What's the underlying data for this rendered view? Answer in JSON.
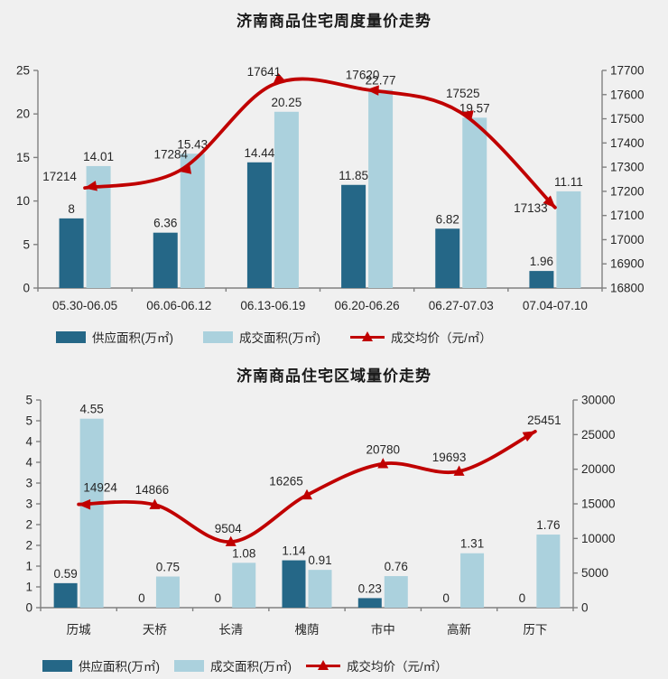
{
  "page_background": "#f0f0f0",
  "colors": {
    "supply_bar": "#256787",
    "transaction_bar": "#abd1dd",
    "price_line": "#c00000",
    "text": "#262626",
    "axis": "#808080"
  },
  "chart_data": [
    {
      "type": "bar",
      "subtype": "grouped-bars-with-line",
      "title": "济南商品住宅周度量价走势",
      "categories": [
        "05.30-06.05",
        "06.06-06.12",
        "06.13-06.19",
        "06.20-06.26",
        "06.27-07.03",
        "07.04-07.10"
      ],
      "series": [
        {
          "name": "供应面积(万㎡)",
          "type": "bar",
          "axis": "left",
          "values": [
            8,
            6.36,
            14.44,
            11.85,
            6.82,
            1.96
          ]
        },
        {
          "name": "成交面积(万㎡)",
          "type": "bar",
          "axis": "left",
          "values": [
            14.01,
            15.43,
            20.25,
            22.77,
            19.57,
            11.11
          ]
        },
        {
          "name": "成交均价（元/㎡）",
          "type": "line",
          "axis": "right",
          "values": [
            17214,
            17284,
            17641,
            17620,
            17525,
            17133
          ]
        }
      ],
      "left_axis": {
        "min": 0,
        "max": 25,
        "step": 5,
        "tick_labels": [
          "0",
          "5",
          "10",
          "15",
          "20",
          "25"
        ]
      },
      "right_axis": {
        "min": 16800,
        "max": 17700,
        "step": 100,
        "tick_labels": [
          "16800",
          "16900",
          "17000",
          "17100",
          "17200",
          "17300",
          "17400",
          "17500",
          "17600",
          "17700"
        ]
      },
      "grid": false,
      "legend_position": "bottom"
    },
    {
      "type": "bar",
      "subtype": "grouped-bars-with-line",
      "title": "济南商品住宅区域量价走势",
      "categories": [
        "历城",
        "天桥",
        "长清",
        "槐荫",
        "市中",
        "高新",
        "历下"
      ],
      "series": [
        {
          "name": "供应面积(万㎡)",
          "type": "bar",
          "axis": "left",
          "values": [
            0.59,
            0,
            0,
            1.14,
            0.23,
            0,
            0
          ]
        },
        {
          "name": "成交面积(万㎡)",
          "type": "bar",
          "axis": "left",
          "values": [
            4.55,
            0.75,
            1.08,
            0.91,
            0.76,
            1.31,
            1.76
          ]
        },
        {
          "name": "成交均价（元/㎡）",
          "type": "line",
          "axis": "right",
          "values": [
            14924,
            14866,
            9504,
            16265,
            20780,
            19693,
            25451
          ]
        }
      ],
      "left_axis": {
        "min": 0,
        "max": 5,
        "step": 0.5,
        "tick_labels": [
          "0",
          "1",
          "1",
          "2",
          "2",
          "3",
          "3",
          "4",
          "4",
          "5",
          "5"
        ]
      },
      "right_axis": {
        "min": 0,
        "max": 30000,
        "step": 5000,
        "tick_labels": [
          "0",
          "5000",
          "10000",
          "15000",
          "20000",
          "25000",
          "30000"
        ]
      },
      "grid": false,
      "legend_position": "bottom"
    }
  ]
}
